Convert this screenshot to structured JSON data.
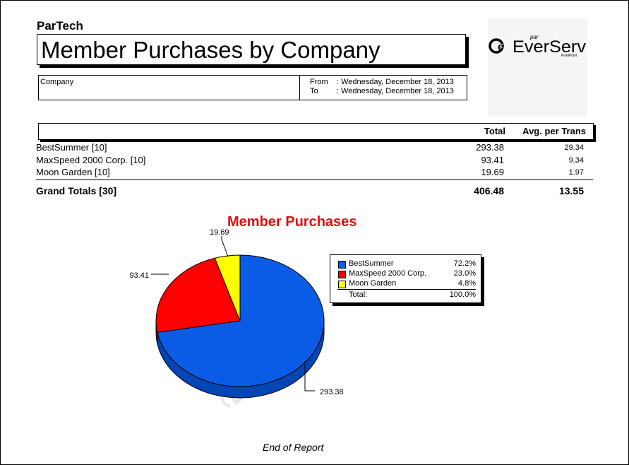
{
  "report": {
    "company_name": "ParTech",
    "title": "Member Purchases by Company",
    "filter": {
      "company_label": "Company",
      "from_label": "From",
      "from_value": ": Wednesday, December 18, 2013",
      "to_label": "To",
      "to_value": ": Wednesday, December 18, 2013"
    },
    "logo": {
      "brand_mark": "e",
      "brand_small": "par",
      "brand_name": "EverServ",
      "brand_sub": "PixelPoint"
    },
    "columns": {
      "total": "Total",
      "avg": "Avg. per Trans"
    },
    "rows": [
      {
        "name": "BestSummer [10]",
        "total": "293.38",
        "avg": "29.34"
      },
      {
        "name": "MaxSpeed 2000 Corp. [10]",
        "total": "93.41",
        "avg": "9.34"
      },
      {
        "name": "Moon Garden [10]",
        "total": "19.69",
        "avg": "1.97"
      }
    ],
    "grand": {
      "name": "Grand Totals [30]",
      "total": "406.48",
      "avg": "13.55"
    },
    "watermark": "Sample",
    "footer": "End of Report"
  },
  "chart_data": {
    "type": "pie",
    "title": "Member Purchases",
    "categories": [
      "BestSummer",
      "MaxSpeed 2000 Corp.",
      "Moon Garden"
    ],
    "values": [
      293.38,
      93.41,
      19.69
    ],
    "value_labels": [
      "293.38",
      "93.41",
      "19.69"
    ],
    "percent_labels": [
      "72.2%",
      "23.0%",
      "4.8%"
    ],
    "colors": [
      "#0a5ce6",
      "#ff0000",
      "#ffff00"
    ],
    "side_colors": [
      "#0046b4",
      "#b40000",
      "#c8c800"
    ],
    "legend": {
      "position": "right",
      "total_label": "Total:",
      "total_pct": "100.0%"
    },
    "style": "3d"
  }
}
